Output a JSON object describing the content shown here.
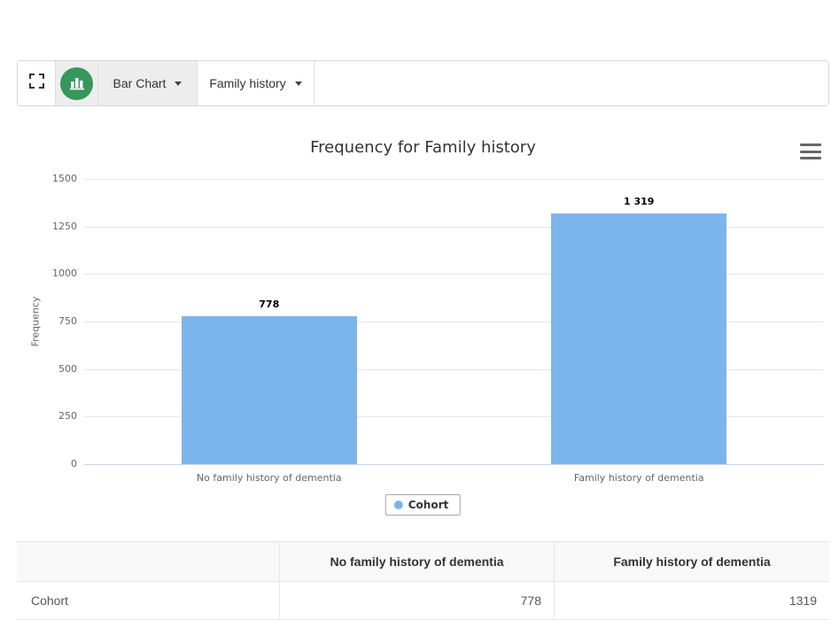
{
  "toolbar": {
    "chart_type_label": "Bar Chart",
    "variable_label": "Family history"
  },
  "chart_data": {
    "type": "bar",
    "title": "Frequency for Family history",
    "categories": [
      "No family history of dementia",
      "Family history of dementia"
    ],
    "series": [
      {
        "name": "Cohort",
        "values": [
          778,
          1319
        ]
      }
    ],
    "value_labels": [
      "778",
      "1 319"
    ],
    "xlabel": "",
    "ylabel": "Frequency",
    "ylim": [
      0,
      1500
    ],
    "ytick_step": 250,
    "yticks": [
      "0",
      "250",
      "500",
      "750",
      "1000",
      "1250",
      "1500"
    ],
    "grid": true,
    "legend_position": "bottom",
    "bar_color": "#7cb5ec"
  },
  "legend": {
    "label": "Cohort"
  },
  "table": {
    "headers": [
      "",
      "No family history of dementia",
      "Family history of dementia"
    ],
    "rows": [
      {
        "label": "Cohort",
        "values": [
          "778",
          "1319"
        ]
      }
    ]
  },
  "colors": {
    "bar": "#7cb5ec",
    "axis_line": "#ccd6eb",
    "gridline": "#e6e6e6",
    "toolbar_icon_green": "#35975b",
    "title_text": "#333333",
    "axis_text": "#666666"
  }
}
